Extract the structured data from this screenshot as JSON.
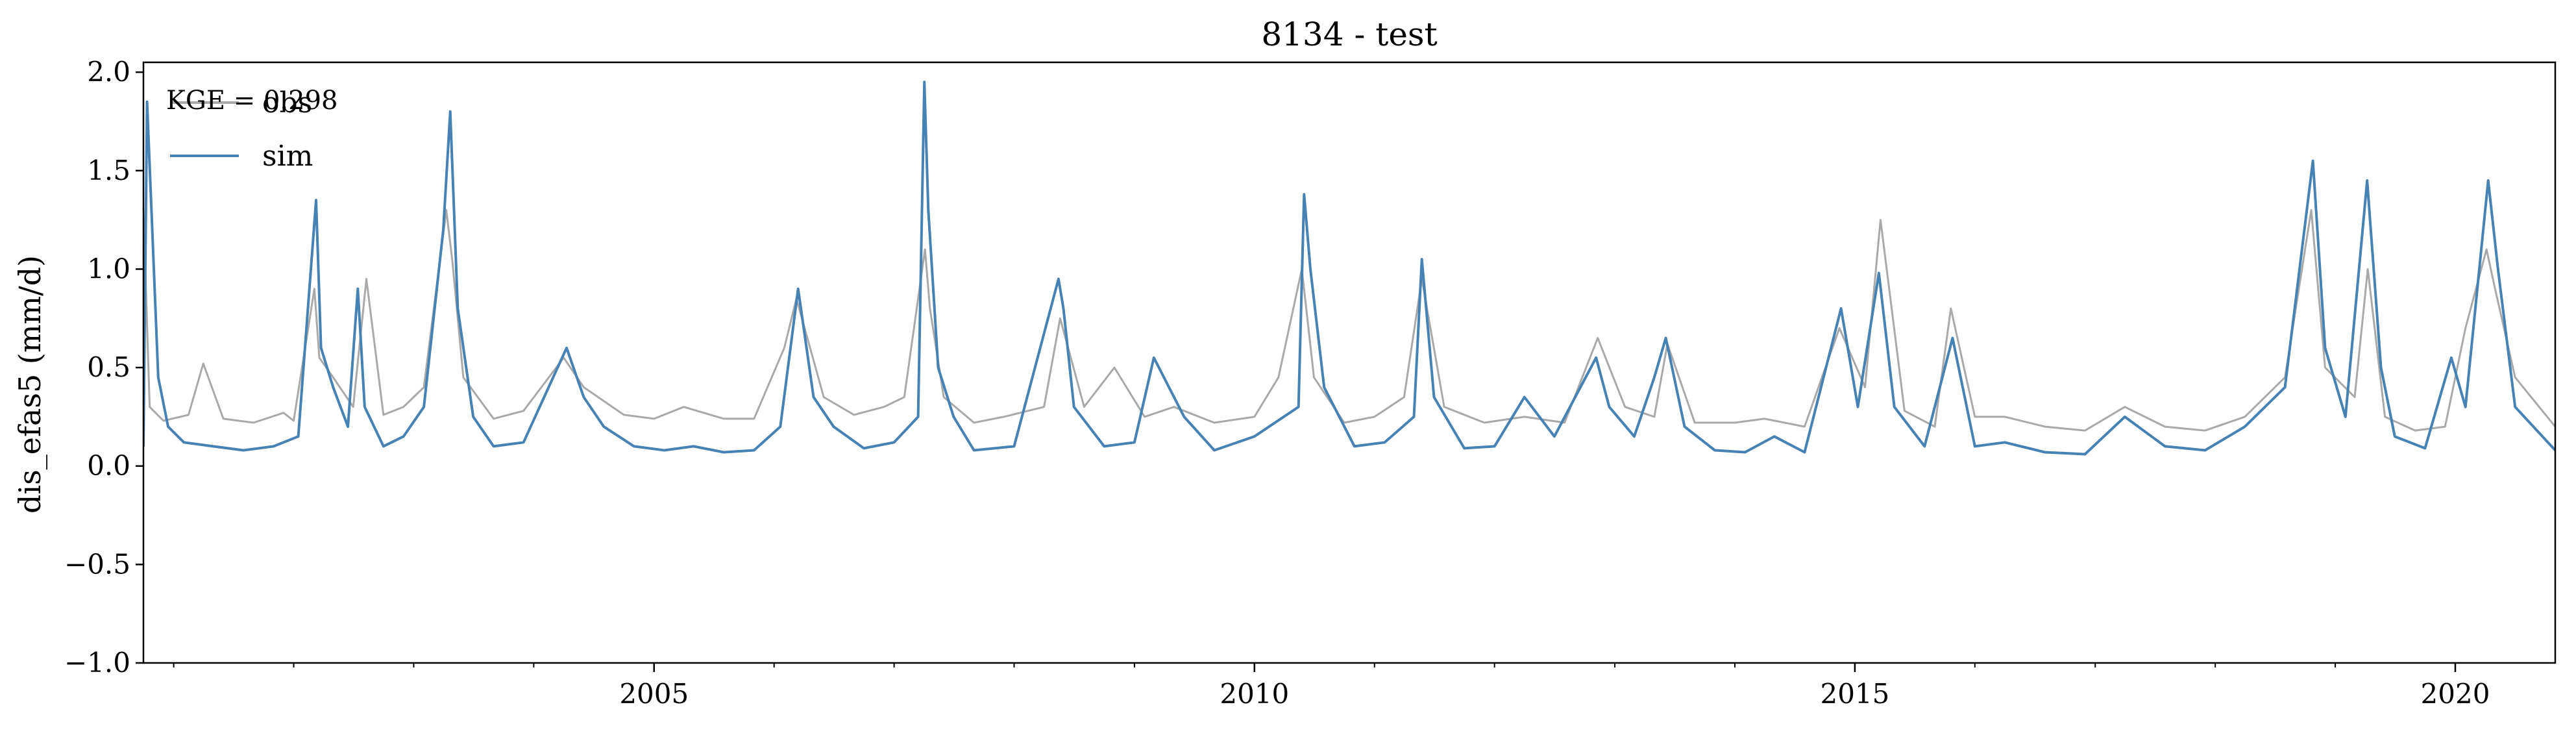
{
  "chart_data": {
    "type": "line",
    "title": "8134 - test",
    "xlabel": "",
    "ylabel": "dis_efas5 (mm/d)",
    "xlim": [
      "2000-10-01",
      "2020-10-31"
    ],
    "ylim": [
      -1.0,
      2.05
    ],
    "x_ticks": [
      "2005-01-01",
      "2010-01-01",
      "2015-01-01",
      "2020-01-01"
    ],
    "x_tick_labels": [
      "2005",
      "2010",
      "2015",
      "2020"
    ],
    "y_ticks": [
      -1.0,
      -0.5,
      0.0,
      0.5,
      1.0,
      1.5,
      2.0
    ],
    "y_tick_labels": [
      "−1.0",
      "−0.5",
      "0.0",
      "0.5",
      "1.0",
      "1.5",
      "2.0"
    ],
    "grid": false,
    "legend": "top-left",
    "annotation": "KGE = 0.298",
    "colors": {
      "obs": "#a9a9a9",
      "sim": "#4682b4"
    },
    "series": [
      {
        "name": "obs",
        "x": [
          "2000-10-01",
          "2000-10-20",
          "2000-12-01",
          "2001-02-15",
          "2001-04-01",
          "2001-06-01",
          "2001-09-01",
          "2001-12-01",
          "2002-01-01",
          "2002-03-05",
          "2002-03-20",
          "2002-05-01",
          "2002-07-01",
          "2002-08-10",
          "2002-10-01",
          "2002-12-01",
          "2003-02-01",
          "2003-04-10",
          "2003-04-28",
          "2003-06-01",
          "2003-09-01",
          "2003-12-01",
          "2004-04-01",
          "2004-06-01",
          "2004-10-01",
          "2005-01-01",
          "2005-04-01",
          "2005-08-01",
          "2005-11-01",
          "2006-02-01",
          "2006-03-10",
          "2006-06-01",
          "2006-09-01",
          "2006-12-01",
          "2007-02-01",
          "2007-04-05",
          "2007-04-20",
          "2007-06-01",
          "2007-09-01",
          "2007-12-01",
          "2008-04-01",
          "2008-05-20",
          "2008-08-01",
          "2008-11-01",
          "2009-02-01",
          "2009-05-01",
          "2009-09-01",
          "2010-01-01",
          "2010-03-15",
          "2010-05-25",
          "2010-07-01",
          "2010-10-01",
          "2011-01-01",
          "2011-04-01",
          "2011-05-25",
          "2011-08-01",
          "2011-12-01",
          "2012-04-01",
          "2012-08-01",
          "2012-11-10",
          "2013-02-01",
          "2013-05-01",
          "2013-06-10",
          "2013-09-01",
          "2014-01-01",
          "2014-04-01",
          "2014-08-01",
          "2014-11-15",
          "2015-02-01",
          "2015-03-20",
          "2015-06-01",
          "2015-09-01",
          "2015-10-20",
          "2016-01-01",
          "2016-04-01",
          "2016-08-01",
          "2016-12-01",
          "2017-04-01",
          "2017-08-01",
          "2017-12-01",
          "2018-04-01",
          "2018-08-01",
          "2018-10-20",
          "2018-12-01",
          "2019-03-01",
          "2019-04-10",
          "2019-06-01",
          "2019-09-01",
          "2019-12-01",
          "2020-02-01",
          "2020-04-05",
          "2020-05-01",
          "2020-07-01",
          "2020-10-31"
        ],
        "values": [
          1.3,
          0.3,
          0.23,
          0.26,
          0.52,
          0.24,
          0.22,
          0.27,
          0.23,
          0.9,
          0.55,
          0.45,
          0.3,
          0.95,
          0.26,
          0.3,
          0.4,
          1.3,
          1.05,
          0.45,
          0.24,
          0.28,
          0.55,
          0.4,
          0.26,
          0.24,
          0.3,
          0.24,
          0.24,
          0.6,
          0.85,
          0.35,
          0.26,
          0.3,
          0.35,
          1.1,
          0.8,
          0.35,
          0.22,
          0.25,
          0.3,
          0.75,
          0.3,
          0.5,
          0.25,
          0.3,
          0.22,
          0.25,
          0.45,
          1.0,
          0.45,
          0.22,
          0.25,
          0.35,
          0.95,
          0.3,
          0.22,
          0.25,
          0.22,
          0.65,
          0.3,
          0.25,
          0.62,
          0.22,
          0.22,
          0.24,
          0.2,
          0.7,
          0.4,
          1.25,
          0.28,
          0.2,
          0.8,
          0.25,
          0.25,
          0.2,
          0.18,
          0.3,
          0.2,
          0.18,
          0.25,
          0.45,
          1.3,
          0.5,
          0.35,
          1.0,
          0.25,
          0.18,
          0.2,
          0.7,
          1.1,
          0.9,
          0.45,
          0.2
        ]
      },
      {
        "name": "sim",
        "x": [
          "2000-10-01",
          "2000-10-12",
          "2000-11-15",
          "2000-12-15",
          "2001-02-01",
          "2001-05-01",
          "2001-08-01",
          "2001-11-01",
          "2002-01-15",
          "2002-03-10",
          "2002-03-25",
          "2002-05-01",
          "2002-06-15",
          "2002-07-15",
          "2002-08-05",
          "2002-10-01",
          "2002-12-01",
          "2003-02-01",
          "2003-04-01",
          "2003-04-22",
          "2003-05-15",
          "2003-07-01",
          "2003-09-01",
          "2003-12-01",
          "2004-04-10",
          "2004-06-01",
          "2004-08-01",
          "2004-11-01",
          "2005-02-01",
          "2005-05-01",
          "2005-08-01",
          "2005-11-01",
          "2006-01-20",
          "2006-03-15",
          "2006-05-01",
          "2006-07-01",
          "2006-10-01",
          "2007-01-01",
          "2007-03-15",
          "2007-04-03",
          "2007-04-15",
          "2007-05-15",
          "2007-07-01",
          "2007-09-01",
          "2008-01-01",
          "2008-05-15",
          "2008-05-30",
          "2008-07-01",
          "2008-10-01",
          "2009-01-01",
          "2009-03-01",
          "2009-06-01",
          "2009-09-01",
          "2010-01-01",
          "2010-05-15",
          "2010-06-01",
          "2010-06-20",
          "2010-08-01",
          "2010-11-01",
          "2011-02-01",
          "2011-05-01",
          "2011-05-25",
          "2011-07-01",
          "2011-10-01",
          "2012-01-01",
          "2012-04-01",
          "2012-07-01",
          "2012-11-05",
          "2012-12-15",
          "2013-03-01",
          "2013-05-01",
          "2013-06-05",
          "2013-08-01",
          "2013-11-01",
          "2014-02-01",
          "2014-05-01",
          "2014-08-01",
          "2014-11-20",
          "2015-01-10",
          "2015-03-15",
          "2015-05-01",
          "2015-08-01",
          "2015-10-25",
          "2016-01-01",
          "2016-04-01",
          "2016-08-01",
          "2016-12-01",
          "2017-04-01",
          "2017-08-01",
          "2017-12-01",
          "2018-04-01",
          "2018-08-01",
          "2018-10-25",
          "2018-12-01",
          "2019-02-01",
          "2019-04-08",
          "2019-05-20",
          "2019-07-01",
          "2019-10-01",
          "2019-12-20",
          "2020-02-01",
          "2020-04-10",
          "2020-05-10",
          "2020-07-01",
          "2020-10-31"
        ],
        "values": [
          0.1,
          1.85,
          0.45,
          0.2,
          0.12,
          0.1,
          0.08,
          0.1,
          0.15,
          1.35,
          0.6,
          0.4,
          0.2,
          0.9,
          0.3,
          0.1,
          0.15,
          0.3,
          1.2,
          1.8,
          0.8,
          0.25,
          0.1,
          0.12,
          0.6,
          0.35,
          0.2,
          0.1,
          0.08,
          0.1,
          0.07,
          0.08,
          0.2,
          0.9,
          0.35,
          0.2,
          0.09,
          0.12,
          0.25,
          1.95,
          1.3,
          0.5,
          0.25,
          0.08,
          0.1,
          0.95,
          0.8,
          0.3,
          0.1,
          0.12,
          0.55,
          0.25,
          0.08,
          0.15,
          0.3,
          1.38,
          1.0,
          0.4,
          0.1,
          0.12,
          0.25,
          1.05,
          0.35,
          0.09,
          0.1,
          0.35,
          0.15,
          0.55,
          0.3,
          0.15,
          0.45,
          0.65,
          0.2,
          0.08,
          0.07,
          0.15,
          0.07,
          0.8,
          0.3,
          0.98,
          0.3,
          0.1,
          0.65,
          0.1,
          0.12,
          0.07,
          0.06,
          0.25,
          0.1,
          0.08,
          0.2,
          0.4,
          1.55,
          0.6,
          0.25,
          1.45,
          0.5,
          0.15,
          0.09,
          0.55,
          0.3,
          1.45,
          1.0,
          0.3,
          0.08
        ]
      }
    ]
  }
}
